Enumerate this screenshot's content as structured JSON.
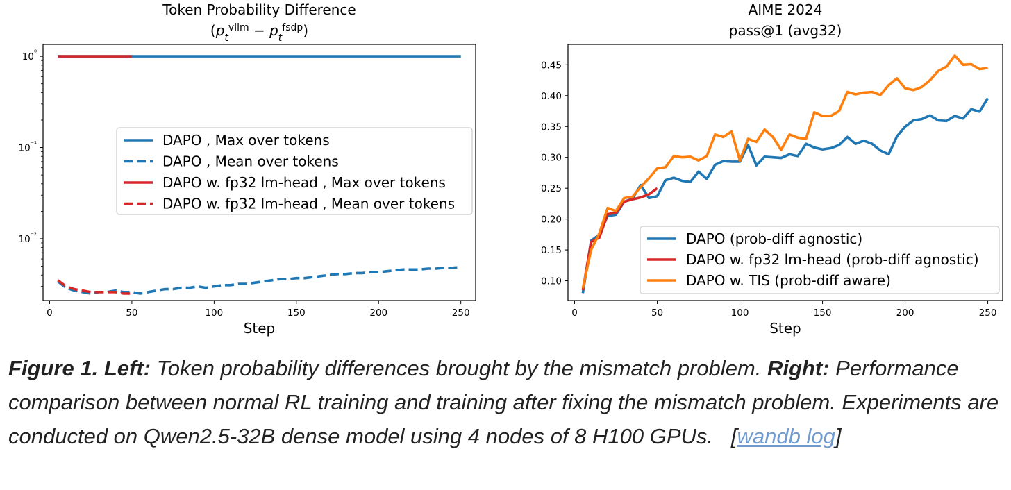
{
  "chart_data": [
    {
      "type": "line",
      "title": "Token Probability Difference",
      "subtitle": "(p_t^vllm − p_t^fsdp)",
      "xlabel": "Step",
      "ylabel": "",
      "yscale": "log",
      "xlim": [
        -4,
        259
      ],
      "ylim": [
        0.0021,
        1.35
      ],
      "xticks": [
        0,
        50,
        100,
        150,
        200,
        250
      ],
      "yticks": [
        0.01,
        0.1,
        1
      ],
      "ytick_labels": [
        "10⁻²",
        "10⁻¹",
        "10⁰"
      ],
      "grid": false,
      "legend_position": "center",
      "series": [
        {
          "name": "DAPO , Max over tokens",
          "color": "#1f77b4",
          "style": "solid",
          "x": [
            5,
            250
          ],
          "y": [
            1.0,
            1.0
          ]
        },
        {
          "name": "DAPO , Mean over tokens",
          "color": "#1f77b4",
          "style": "dashed",
          "x": [
            5,
            10,
            15,
            20,
            25,
            30,
            35,
            40,
            45,
            50,
            55,
            60,
            65,
            70,
            75,
            80,
            85,
            90,
            95,
            100,
            105,
            110,
            115,
            120,
            125,
            130,
            135,
            140,
            145,
            150,
            155,
            160,
            165,
            170,
            175,
            180,
            185,
            190,
            195,
            200,
            205,
            210,
            215,
            220,
            225,
            230,
            235,
            240,
            245,
            250
          ],
          "y": [
            0.0034,
            0.0029,
            0.0027,
            0.0026,
            0.0025,
            0.0026,
            0.0026,
            0.0027,
            0.0026,
            0.0026,
            0.0025,
            0.0026,
            0.0027,
            0.0028,
            0.0028,
            0.0029,
            0.0029,
            0.003,
            0.0029,
            0.003,
            0.0031,
            0.0031,
            0.0032,
            0.0032,
            0.0033,
            0.0034,
            0.0035,
            0.0036,
            0.0036,
            0.0037,
            0.0037,
            0.0038,
            0.0039,
            0.004,
            0.0041,
            0.0041,
            0.0042,
            0.0042,
            0.0043,
            0.0043,
            0.0044,
            0.0045,
            0.0046,
            0.0046,
            0.0046,
            0.0047,
            0.0047,
            0.0048,
            0.0048,
            0.0049
          ]
        },
        {
          "name": "DAPO w. fp32 lm-head , Max over tokens",
          "color": "#d62728",
          "style": "solid",
          "x": [
            5,
            50
          ],
          "y": [
            1.0,
            1.0
          ]
        },
        {
          "name": "DAPO w. fp32 lm-head , Mean over tokens",
          "color": "#d62728",
          "style": "dashed",
          "x": [
            5,
            10,
            15,
            20,
            25,
            30,
            35,
            40,
            45,
            50
          ],
          "y": [
            0.0035,
            0.003,
            0.0028,
            0.0027,
            0.0026,
            0.0026,
            0.0026,
            0.0026,
            0.0025,
            0.0025
          ]
        }
      ]
    },
    {
      "type": "line",
      "title": "AIME 2024",
      "subtitle": "pass@1 (avg32)",
      "xlabel": "Step",
      "ylabel": "",
      "xlim": [
        -4,
        259
      ],
      "ylim": [
        0.068,
        0.483
      ],
      "xticks": [
        0,
        50,
        100,
        150,
        200,
        250
      ],
      "yticks": [
        0.1,
        0.15,
        0.2,
        0.25,
        0.3,
        0.35,
        0.4,
        0.45
      ],
      "ytick_labels": [
        "0.10",
        "0.15",
        "0.20",
        "0.25",
        "0.30",
        "0.35",
        "0.40",
        "0.45"
      ],
      "grid": false,
      "legend_position": "lower right",
      "series": [
        {
          "name": "DAPO (prob-diff agnostic)",
          "color": "#1f77b4",
          "style": "solid",
          "x": [
            5,
            10,
            15,
            20,
            25,
            30,
            35,
            40,
            45,
            50,
            55,
            60,
            65,
            70,
            75,
            80,
            85,
            90,
            95,
            100,
            105,
            110,
            115,
            120,
            125,
            130,
            135,
            140,
            145,
            150,
            155,
            160,
            165,
            170,
            175,
            180,
            185,
            190,
            195,
            200,
            205,
            210,
            215,
            220,
            225,
            230,
            235,
            240,
            245,
            250
          ],
          "y": [
            0.08,
            0.165,
            0.175,
            0.205,
            0.207,
            0.228,
            0.233,
            0.255,
            0.234,
            0.237,
            0.263,
            0.267,
            0.262,
            0.26,
            0.277,
            0.265,
            0.288,
            0.294,
            0.293,
            0.293,
            0.32,
            0.287,
            0.301,
            0.3,
            0.299,
            0.305,
            0.302,
            0.322,
            0.316,
            0.313,
            0.315,
            0.32,
            0.333,
            0.322,
            0.327,
            0.322,
            0.311,
            0.305,
            0.334,
            0.35,
            0.36,
            0.362,
            0.368,
            0.36,
            0.359,
            0.367,
            0.363,
            0.378,
            0.374,
            0.396
          ]
        },
        {
          "name": "DAPO w. fp32 lm-head (prob-diff agnostic)",
          "color": "#d62728",
          "style": "solid",
          "x": [
            5,
            10,
            15,
            20,
            25,
            30,
            35,
            40,
            45,
            50
          ],
          "y": [
            0.085,
            0.163,
            0.17,
            0.208,
            0.21,
            0.228,
            0.232,
            0.235,
            0.24,
            0.25
          ]
        },
        {
          "name": "DAPO w. TIS (prob-diff aware)",
          "color": "#ff7f0e",
          "style": "solid",
          "x": [
            5,
            10,
            15,
            20,
            25,
            30,
            35,
            40,
            45,
            50,
            55,
            60,
            65,
            70,
            75,
            80,
            85,
            90,
            95,
            100,
            105,
            110,
            115,
            120,
            125,
            130,
            135,
            140,
            145,
            150,
            155,
            160,
            165,
            170,
            175,
            180,
            185,
            190,
            195,
            200,
            205,
            210,
            215,
            220,
            225,
            230,
            235,
            240,
            245,
            250
          ],
          "y": [
            0.088,
            0.15,
            0.177,
            0.218,
            0.213,
            0.234,
            0.236,
            0.252,
            0.266,
            0.282,
            0.284,
            0.302,
            0.3,
            0.301,
            0.295,
            0.302,
            0.337,
            0.333,
            0.342,
            0.295,
            0.33,
            0.325,
            0.345,
            0.333,
            0.312,
            0.337,
            0.332,
            0.33,
            0.373,
            0.367,
            0.367,
            0.375,
            0.406,
            0.402,
            0.405,
            0.406,
            0.401,
            0.417,
            0.428,
            0.412,
            0.409,
            0.414,
            0.425,
            0.44,
            0.447,
            0.465,
            0.45,
            0.451,
            0.443,
            0.445
          ]
        }
      ]
    }
  ],
  "caption": {
    "figure_label": "Figure 1.",
    "left_label": "Left:",
    "left_text": "Token probability differences brought by the mismatch problem.",
    "right_label": "Right:",
    "right_text": "Performance comparison between normal RL training and training after fixing the mismatch problem. Experiments are conducted on Qwen2.5-32B dense model using 4 nodes of 8 H100 GPUs.",
    "link_open": "[",
    "link_text": "wandb log",
    "link_close": "]"
  }
}
